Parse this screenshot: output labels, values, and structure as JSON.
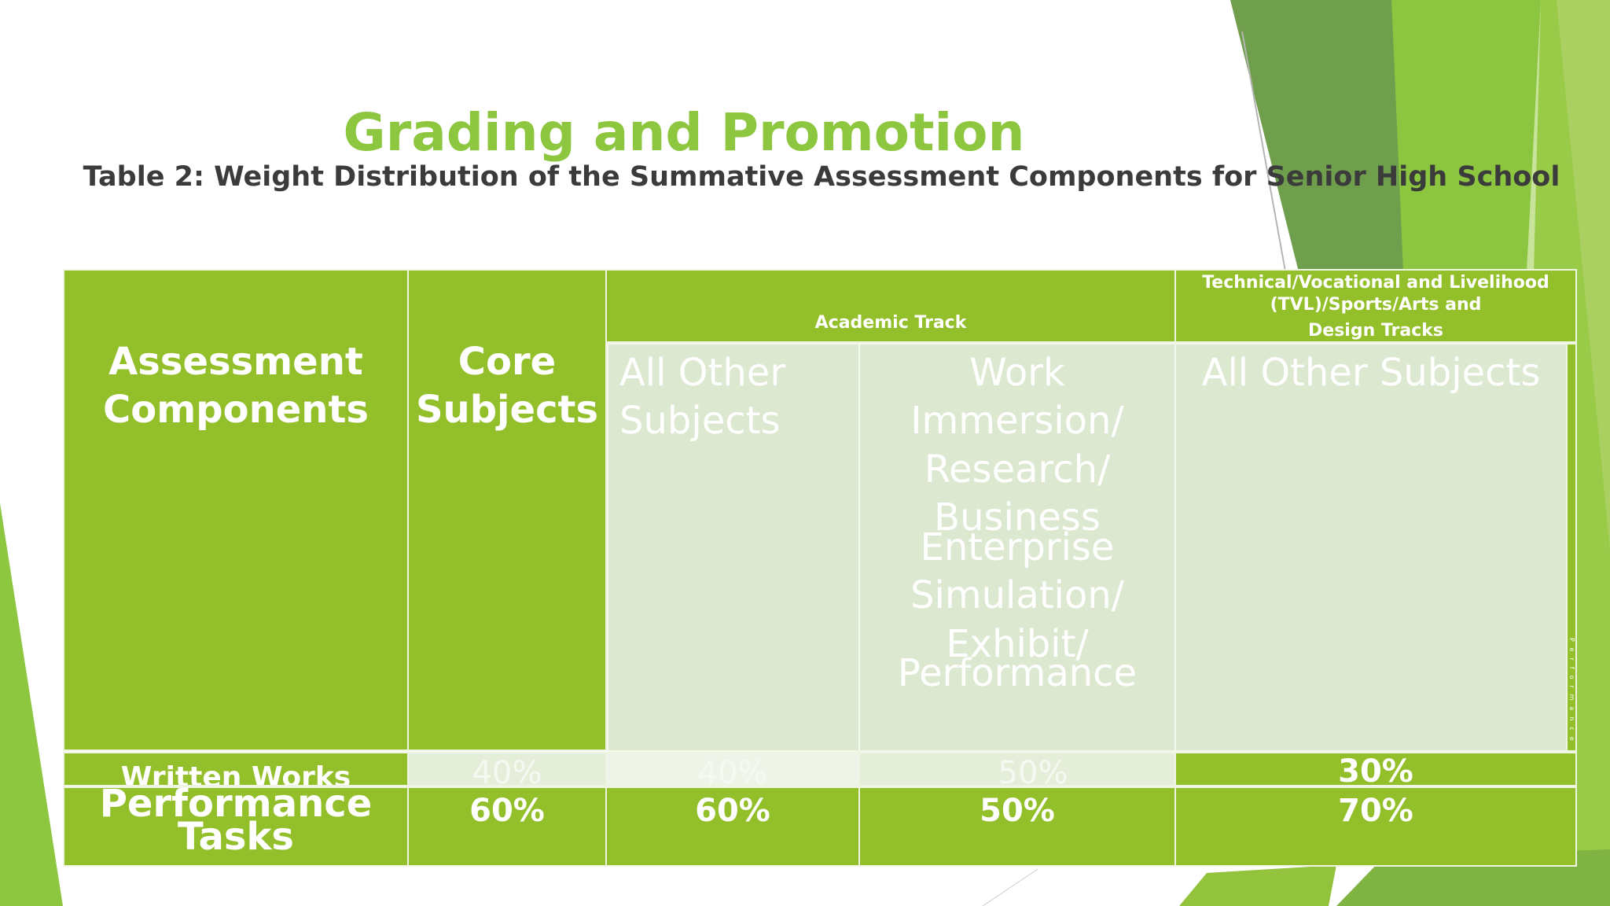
{
  "slide": {
    "title": "Grading and Promotion",
    "subtitle": "Table 2: Weight Distribution of the Summative Assessment Components for Senior High School"
  },
  "table": {
    "header": {
      "assessment_components": [
        "Assessment",
        "Components"
      ],
      "core_subjects": [
        "Core",
        "Subjects"
      ],
      "academic_track": "Academic Track",
      "tvl_track": [
        "Technical/Vocational and Livelihood",
        "(TVL)/Sports/Arts and",
        "Design Tracks"
      ],
      "academic_all_other": [
        "All Other",
        "Subjects"
      ],
      "work_immersion": [
        "Work",
        "Immersion/",
        "Research/",
        "Business",
        "Enterprise",
        "Simulation/",
        "Exhibit/",
        "Performance"
      ],
      "tvl_all_other": "All Other Subjects",
      "tiny_vertical": "Performance"
    },
    "rows": [
      {
        "label": "Written Works",
        "core": "40%",
        "academic_other": "40%",
        "work_immersion": "50%",
        "tvl_other": "30%"
      },
      {
        "label": [
          "Performance",
          "Tasks"
        ],
        "core": "60%",
        "academic_other": "60%",
        "work_immersion": "50%",
        "tvl_other": "70%"
      }
    ]
  }
}
